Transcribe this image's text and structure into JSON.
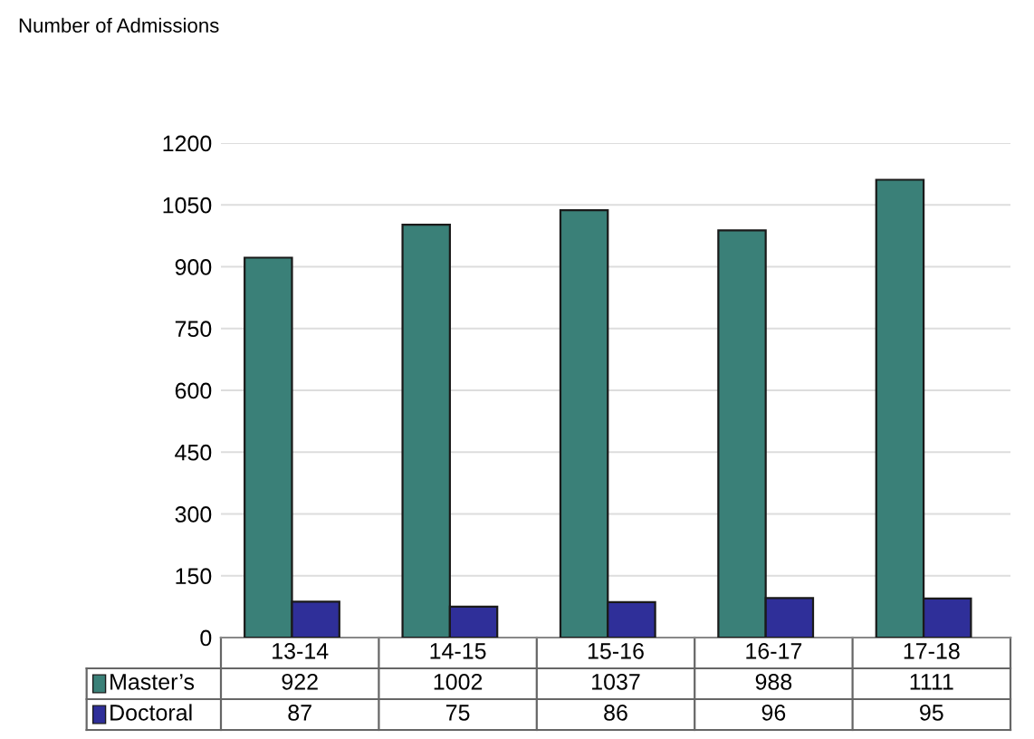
{
  "chart_data": {
    "type": "bar",
    "title": "Number of Admissions",
    "categories": [
      "13-14",
      "14-15",
      "15-16",
      "16-17",
      "17-18"
    ],
    "series": [
      {
        "name": "Master’s",
        "color": "#3a8078",
        "values": [
          922,
          1002,
          1037,
          988,
          1111
        ]
      },
      {
        "name": "Doctoral",
        "color": "#2f2f99",
        "values": [
          87,
          75,
          86,
          96,
          95
        ]
      }
    ],
    "ylim": [
      0,
      1200
    ],
    "yticks": [
      0,
      150,
      300,
      450,
      600,
      750,
      900,
      1050,
      1200
    ],
    "grid": "y",
    "data_labels": true,
    "legend": "bottom left"
  }
}
